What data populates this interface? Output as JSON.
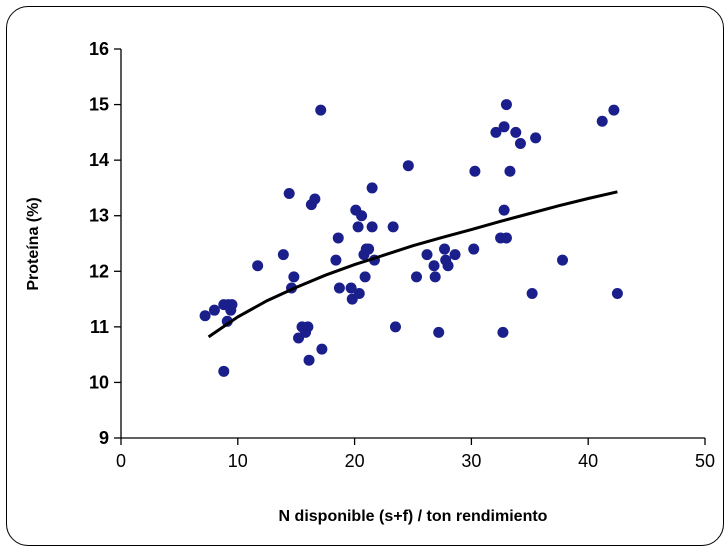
{
  "chart_data": {
    "type": "scatter",
    "xlabel": "N disponible (s+f) / ton rendimiento",
    "ylabel": "Proteína (%)",
    "xlim": [
      0,
      50
    ],
    "ylim": [
      9,
      16
    ],
    "x_ticks": [
      "0",
      "10",
      "20",
      "30",
      "40",
      "50"
    ],
    "y_ticks": [
      "9",
      "10",
      "11",
      "12",
      "13",
      "14",
      "15",
      "16"
    ],
    "grid": false,
    "legend": "none",
    "marker_color": "#1a1f8c",
    "trend_color": "#000000",
    "points": [
      [
        7.2,
        11.2
      ],
      [
        8.0,
        11.3
      ],
      [
        8.8,
        11.4
      ],
      [
        8.8,
        10.2
      ],
      [
        9.1,
        11.1
      ],
      [
        9.2,
        11.4
      ],
      [
        9.4,
        11.3
      ],
      [
        9.5,
        11.4
      ],
      [
        11.7,
        12.1
      ],
      [
        13.9,
        12.3
      ],
      [
        14.4,
        13.4
      ],
      [
        14.6,
        11.7
      ],
      [
        14.8,
        11.9
      ],
      [
        15.2,
        10.8
      ],
      [
        15.5,
        11.0
      ],
      [
        15.8,
        10.9
      ],
      [
        16.0,
        11.0
      ],
      [
        16.1,
        10.4
      ],
      [
        16.3,
        13.2
      ],
      [
        16.6,
        13.3
      ],
      [
        17.1,
        14.9
      ],
      [
        17.2,
        10.6
      ],
      [
        18.4,
        12.2
      ],
      [
        18.6,
        12.6
      ],
      [
        18.7,
        11.7
      ],
      [
        19.7,
        11.7
      ],
      [
        19.8,
        11.5
      ],
      [
        20.1,
        13.1
      ],
      [
        20.3,
        12.8
      ],
      [
        20.4,
        11.6
      ],
      [
        20.6,
        13.0
      ],
      [
        20.8,
        12.3
      ],
      [
        20.9,
        11.9
      ],
      [
        21.0,
        12.4
      ],
      [
        21.2,
        12.4
      ],
      [
        21.5,
        13.5
      ],
      [
        21.5,
        12.8
      ],
      [
        21.7,
        12.2
      ],
      [
        23.3,
        12.8
      ],
      [
        23.5,
        11.0
      ],
      [
        24.6,
        13.9
      ],
      [
        25.3,
        11.9
      ],
      [
        26.2,
        12.3
      ],
      [
        26.8,
        12.1
      ],
      [
        26.9,
        11.9
      ],
      [
        27.2,
        10.9
      ],
      [
        27.7,
        12.4
      ],
      [
        27.8,
        12.2
      ],
      [
        28.0,
        12.1
      ],
      [
        28.6,
        12.3
      ],
      [
        30.2,
        12.4
      ],
      [
        30.3,
        13.8
      ],
      [
        32.1,
        14.5
      ],
      [
        32.5,
        12.6
      ],
      [
        32.7,
        10.9
      ],
      [
        32.8,
        14.6
      ],
      [
        32.8,
        13.1
      ],
      [
        33.0,
        15.0
      ],
      [
        33.0,
        12.6
      ],
      [
        33.3,
        13.8
      ],
      [
        33.8,
        14.5
      ],
      [
        34.2,
        14.3
      ],
      [
        35.2,
        11.6
      ],
      [
        35.5,
        14.4
      ],
      [
        37.8,
        12.2
      ],
      [
        41.2,
        14.7
      ],
      [
        42.2,
        14.9
      ],
      [
        42.5,
        11.6
      ]
    ],
    "trend": [
      [
        7.5,
        10.82
      ],
      [
        10,
        11.18
      ],
      [
        12.5,
        11.47
      ],
      [
        15,
        11.71
      ],
      [
        17.5,
        11.93
      ],
      [
        20,
        12.12
      ],
      [
        22.5,
        12.29
      ],
      [
        25,
        12.46
      ],
      [
        27.5,
        12.61
      ],
      [
        30,
        12.75
      ],
      [
        32.5,
        12.9
      ],
      [
        35,
        13.04
      ],
      [
        37.5,
        13.18
      ],
      [
        40,
        13.31
      ],
      [
        42.5,
        13.43
      ]
    ]
  }
}
